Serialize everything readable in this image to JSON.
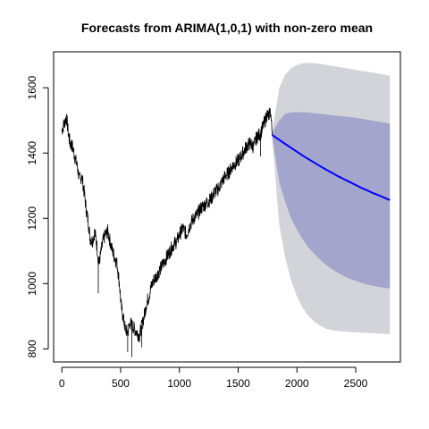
{
  "chart_data": {
    "type": "line",
    "title": "Forecasts from ARIMA(1,0,1) with non-zero mean",
    "xlabel": "",
    "ylabel": "",
    "xlim": [
      -70,
      2880
    ],
    "ylim": [
      760,
      1710
    ],
    "x_ticks": [
      0,
      500,
      1000,
      1500,
      2000,
      2500
    ],
    "y_ticks": [
      800,
      1000,
      1200,
      1400,
      1600
    ],
    "grid": false,
    "legend": "none",
    "colors": {
      "history": "#000000",
      "forecast": "#0000ff",
      "band_80": "#a3a5cc",
      "band_95": "#d3d3da"
    },
    "history": {
      "x": [
        0,
        20,
        40,
        55,
        70,
        90,
        110,
        130,
        150,
        170,
        190,
        210,
        225,
        240,
        260,
        280,
        300,
        315,
        330,
        350,
        370,
        390,
        410,
        430,
        450,
        470,
        490,
        505,
        520,
        540,
        560,
        580,
        600,
        620,
        640,
        660,
        680,
        700,
        720,
        740,
        760,
        780,
        800,
        830,
        860,
        890,
        920,
        950,
        980,
        1000,
        1030,
        1060,
        1090,
        1120,
        1150,
        1180,
        1210,
        1240,
        1270,
        1300,
        1330,
        1360,
        1390,
        1420,
        1450,
        1480,
        1510,
        1540,
        1570,
        1600,
        1630,
        1660,
        1690,
        1710,
        1730,
        1745,
        1760,
        1775,
        1790
      ],
      "y": [
        1470,
        1490,
        1510,
        1460,
        1430,
        1420,
        1390,
        1360,
        1320,
        1330,
        1280,
        1220,
        1190,
        1140,
        1130,
        1160,
        1110,
        1060,
        1090,
        1130,
        1150,
        1160,
        1130,
        1100,
        1080,
        1060,
        1000,
        930,
        900,
        860,
        850,
        880,
        870,
        860,
        850,
        840,
        870,
        900,
        940,
        960,
        990,
        1010,
        1020,
        1040,
        1060,
        1080,
        1100,
        1120,
        1130,
        1150,
        1170,
        1150,
        1180,
        1200,
        1210,
        1230,
        1240,
        1250,
        1260,
        1280,
        1290,
        1310,
        1330,
        1340,
        1360,
        1370,
        1380,
        1400,
        1420,
        1430,
        1420,
        1450,
        1460,
        1480,
        1500,
        1520,
        1510,
        1530,
        1455
      ],
      "spike": [
        {
          "x": 40,
          "y": 1520
        },
        {
          "x": 310,
          "y": 970
        },
        {
          "x": 560,
          "y": 790
        },
        {
          "x": 595,
          "y": 775
        },
        {
          "x": 680,
          "y": 805
        },
        {
          "x": 1690,
          "y": 1390
        }
      ]
    },
    "forecast": {
      "x": [
        1790,
        1850,
        1900,
        1950,
        2000,
        2050,
        2100,
        2150,
        2200,
        2250,
        2300,
        2350,
        2400,
        2450,
        2500,
        2550,
        2600,
        2650,
        2700,
        2750,
        2790
      ],
      "mean": [
        1455,
        1440,
        1428,
        1416,
        1404,
        1392,
        1381,
        1370,
        1359,
        1349,
        1339,
        1329,
        1320,
        1311,
        1302,
        1293,
        1285,
        1277,
        1270,
        1262,
        1256
      ],
      "lo80": [
        1448,
        1310,
        1250,
        1200,
        1165,
        1135,
        1110,
        1090,
        1072,
        1057,
        1044,
        1033,
        1023,
        1015,
        1008,
        1002,
        997,
        993,
        990,
        987,
        985
      ],
      "hi80": [
        1462,
        1500,
        1520,
        1525,
        1525,
        1525,
        1524,
        1522,
        1520,
        1518,
        1516,
        1514,
        1512,
        1510,
        1508,
        1505,
        1502,
        1499,
        1496,
        1493,
        1490
      ],
      "lo95": [
        1445,
        1180,
        1080,
        1010,
        960,
        925,
        900,
        882,
        870,
        862,
        857,
        855,
        853,
        852,
        851,
        850,
        849,
        848,
        847,
        846,
        845
      ],
      "hi95": [
        1465,
        1600,
        1640,
        1660,
        1670,
        1675,
        1676,
        1675,
        1673,
        1670,
        1667,
        1664,
        1661,
        1658,
        1655,
        1652,
        1649,
        1646,
        1643,
        1640,
        1637
      ]
    }
  }
}
